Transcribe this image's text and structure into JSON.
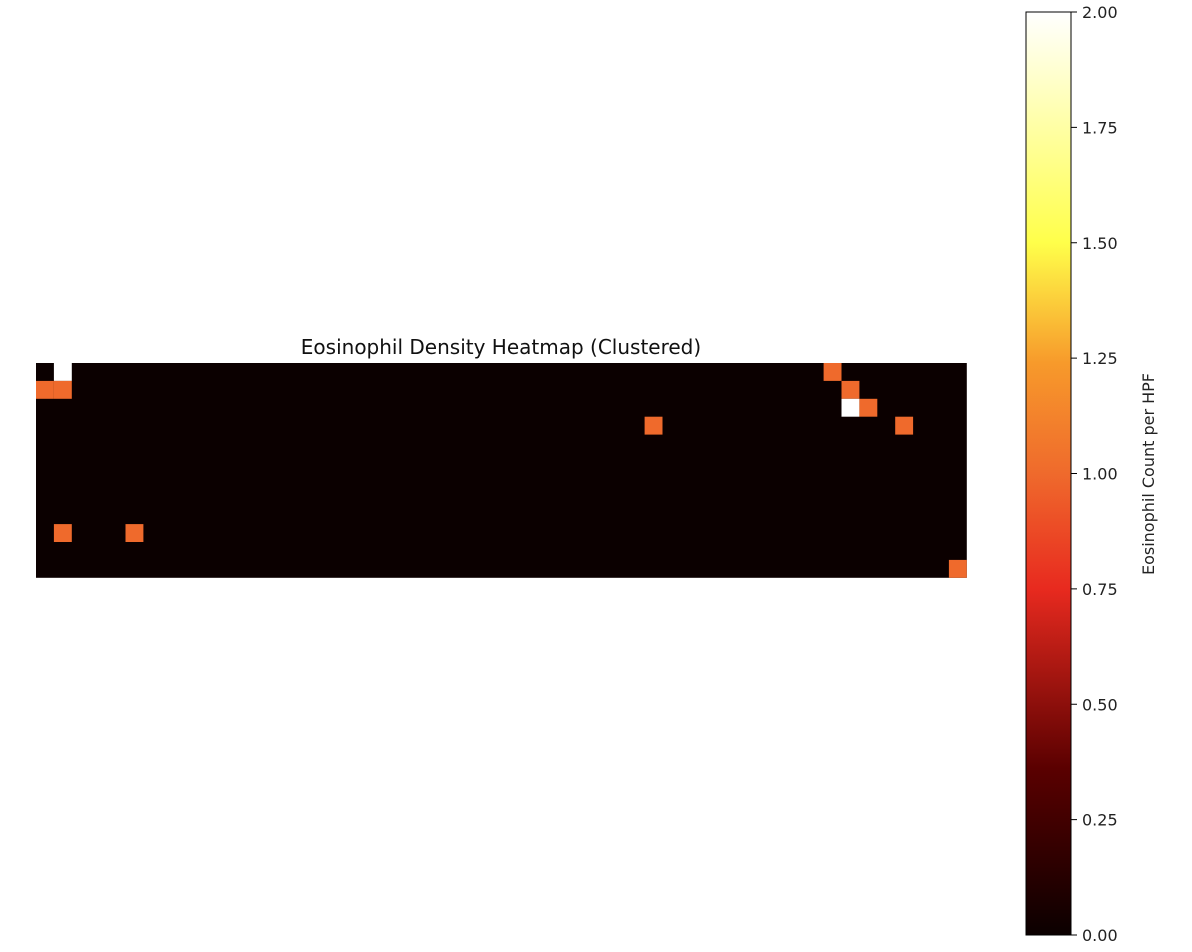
{
  "chart_data": {
    "type": "heatmap",
    "title": "Eosinophil Density Heatmap (Clustered)",
    "rows": 12,
    "cols": 52,
    "background_value": 0,
    "cells": [
      {
        "row": 0,
        "col": 1,
        "value": 2
      },
      {
        "row": 1,
        "col": 0,
        "value": 1
      },
      {
        "row": 1,
        "col": 1,
        "value": 1
      },
      {
        "row": 0,
        "col": 44,
        "value": 1
      },
      {
        "row": 1,
        "col": 45,
        "value": 1
      },
      {
        "row": 2,
        "col": 45,
        "value": 2
      },
      {
        "row": 2,
        "col": 46,
        "value": 1
      },
      {
        "row": 3,
        "col": 34,
        "value": 1
      },
      {
        "row": 3,
        "col": 48,
        "value": 1
      },
      {
        "row": 9,
        "col": 1,
        "value": 1
      },
      {
        "row": 9,
        "col": 5,
        "value": 1
      },
      {
        "row": 11,
        "col": 51,
        "value": 1
      }
    ],
    "colormap": "hot",
    "axes_visible": false,
    "colorbar": {
      "label": "Eosinophil Count per HPF",
      "range": [
        0,
        2
      ],
      "ticks": [
        "0.00",
        "0.25",
        "0.50",
        "0.75",
        "1.00",
        "1.25",
        "1.50",
        "1.75",
        "2.00"
      ],
      "tick_values": [
        0,
        0.25,
        0.5,
        0.75,
        1.0,
        1.25,
        1.5,
        1.75,
        2.0
      ]
    }
  }
}
